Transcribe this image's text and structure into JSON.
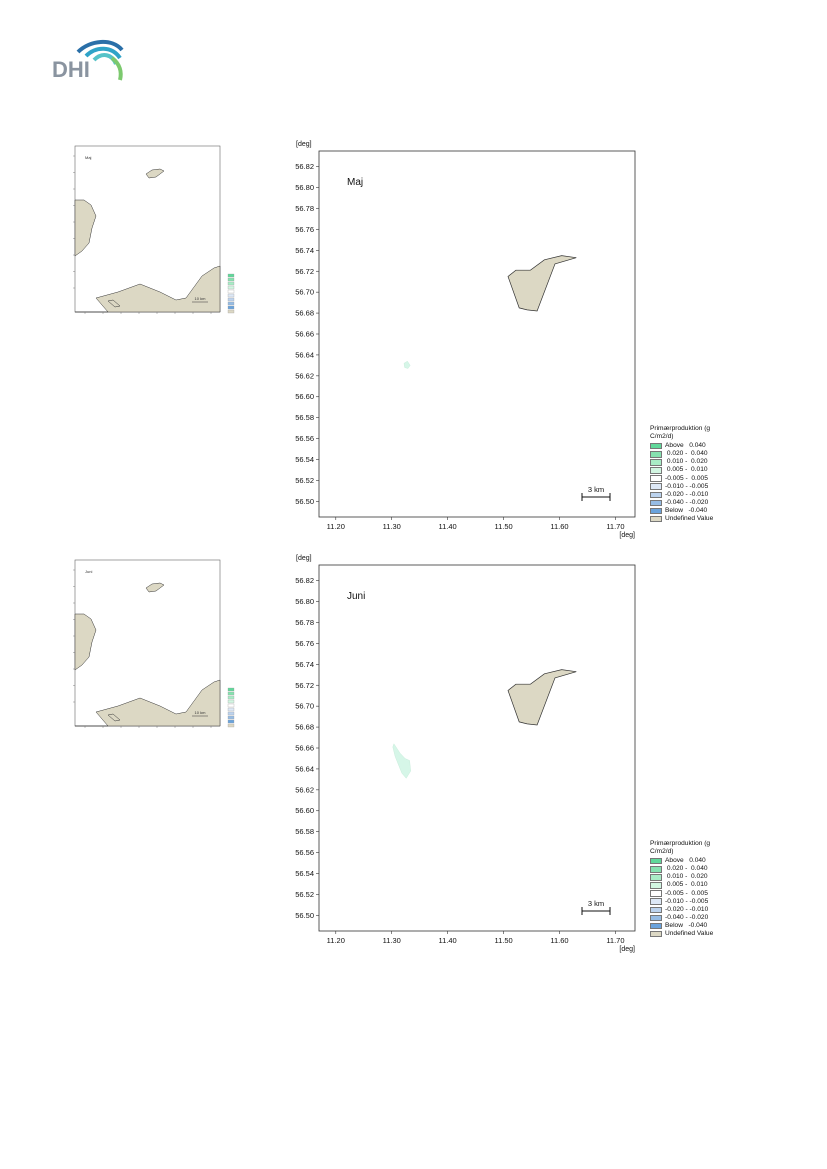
{
  "brand": {
    "logo_text": "DHI"
  },
  "legend": {
    "title": "Primærproduktion (g\nC/m2/d)",
    "items": [
      {
        "label": "Above   0.040",
        "color": "#60d89a"
      },
      {
        "label": " 0.020 -  0.040",
        "color": "#86e2b0"
      },
      {
        "label": " 0.010 -  0.020",
        "color": "#a9ecc6"
      },
      {
        "label": " 0.005 -  0.010",
        "color": "#d2f6e2"
      },
      {
        "label": "-0.005 -  0.005",
        "color": "#ffffff"
      },
      {
        "label": "-0.010 - -0.005",
        "color": "#dde8f6"
      },
      {
        "label": "-0.020 - -0.010",
        "color": "#bcd3ee"
      },
      {
        "label": "-0.040 - -0.020",
        "color": "#96bce4"
      },
      {
        "label": "Below   -0.040",
        "color": "#6aa3dc"
      },
      {
        "label": "Undefined Value",
        "color": "#dcd8c4"
      }
    ]
  },
  "axes": {
    "unit": "[deg]",
    "y_ticks": [
      "56.82",
      "56.80",
      "56.78",
      "56.76",
      "56.74",
      "56.72",
      "56.70",
      "56.68",
      "56.66",
      "56.64",
      "56.62",
      "56.60",
      "56.58",
      "56.56",
      "56.54",
      "56.52",
      "56.50"
    ],
    "x_ticks": [
      "11.20",
      "11.30",
      "11.40",
      "11.50",
      "11.60",
      "11.70"
    ]
  },
  "colors": {
    "land": "#dcd8c4",
    "patch": "#d6f6e8",
    "coast": "#333333"
  },
  "maps": [
    {
      "title": "Maj",
      "scale_bar": "3 km",
      "overview": {
        "title": "Maj",
        "scale_bar": "10 km"
      },
      "patches": [
        [
          [
            11.322,
            56.632
          ],
          [
            11.328,
            56.634
          ],
          [
            11.333,
            56.63
          ],
          [
            11.329,
            56.627
          ],
          [
            11.323,
            56.628
          ]
        ]
      ]
    },
    {
      "title": "Juni",
      "scale_bar": "3 km",
      "overview": {
        "title": "Juni",
        "scale_bar": "10 km"
      },
      "patches": [
        [
          [
            11.304,
            56.664
          ],
          [
            11.315,
            56.655
          ],
          [
            11.324,
            56.65
          ],
          [
            11.332,
            56.648
          ],
          [
            11.334,
            56.638
          ],
          [
            11.326,
            56.631
          ],
          [
            11.318,
            56.636
          ],
          [
            11.306,
            56.652
          ],
          [
            11.302,
            56.661
          ]
        ]
      ]
    }
  ]
}
